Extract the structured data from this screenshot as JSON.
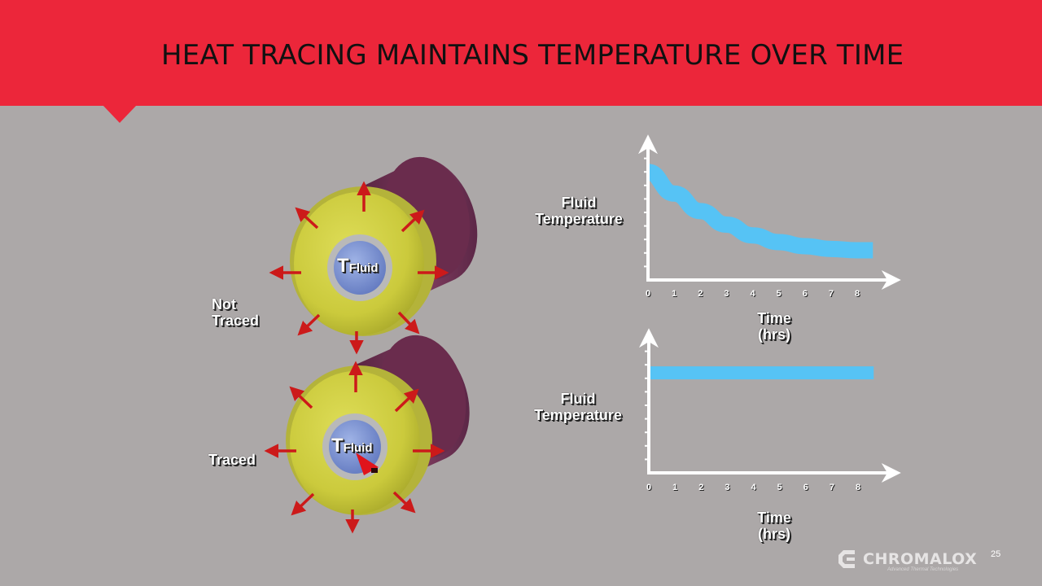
{
  "slide": {
    "title": "HEAT TRACING MAINTAINS TEMPERATURE OVER TIME",
    "page_number": "25"
  },
  "colors": {
    "header": "#ec263a",
    "background": "#aca8a8",
    "insulation": "#cdcc3f",
    "pipe_body": "#6b2f4f",
    "fluid_core": "#7d95d2",
    "heat_arrow": "#cc1a1a",
    "curve": "#56c3f5"
  },
  "pipes": {
    "not_traced": {
      "label": "Not Traced",
      "fluid_label_main": "T",
      "fluid_label_sub": "Fluid"
    },
    "traced": {
      "label": "Traced",
      "fluid_label_main": "T",
      "fluid_label_sub": "Fluid"
    }
  },
  "chart_data": [
    {
      "type": "line",
      "ylabel": "Fluid Temperature",
      "xlabel": "Time (hrs)",
      "x_ticks": [
        "0",
        "1",
        "2",
        "3",
        "4",
        "5",
        "6",
        "7",
        "8"
      ],
      "series": [
        {
          "x": [
            0,
            1,
            2,
            3,
            4,
            5,
            6,
            7,
            8,
            8.6
          ],
          "y": [
            8.0,
            6.4,
            5.1,
            4.1,
            3.3,
            2.8,
            2.5,
            2.3,
            2.2,
            2.2
          ]
        }
      ],
      "xlim": [
        0,
        9
      ],
      "ylim": [
        0,
        10
      ]
    },
    {
      "type": "line",
      "ylabel": "Fluid Temperature",
      "xlabel": "Time (hrs)",
      "x_ticks": [
        "0",
        "1",
        "2",
        "3",
        "4",
        "5",
        "6",
        "7",
        "8"
      ],
      "series": [
        {
          "x": [
            0,
            8.6
          ],
          "y": [
            7.4,
            7.4
          ]
        }
      ],
      "xlim": [
        0,
        9
      ],
      "ylim": [
        0,
        10
      ]
    }
  ],
  "logo": {
    "name": "CHROMALOX",
    "tagline": "Advanced Thermal Technologies"
  }
}
